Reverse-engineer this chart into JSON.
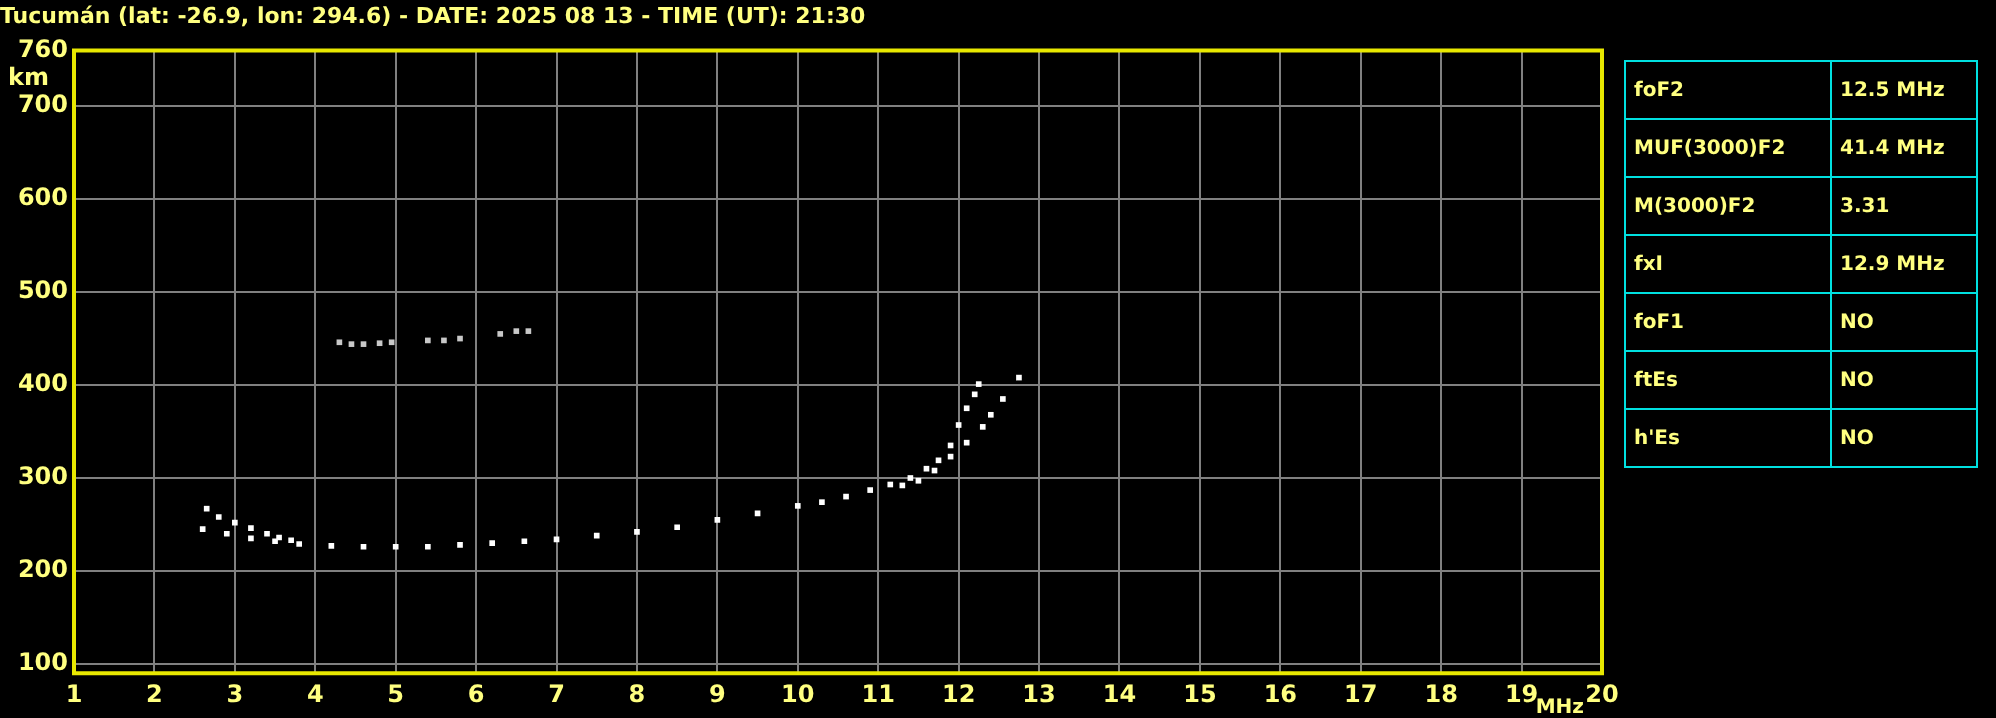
{
  "chart_data": {
    "type": "scatter",
    "title": "Tucumán (lat: -26.9, lon: 294.6) - DATE: 2025 08 13 - TIME (UT): 21:30",
    "xlabel": "MHz",
    "ylabel": "km",
    "xlim": [
      1,
      20
    ],
    "xticks": [
      1,
      2,
      3,
      4,
      5,
      6,
      7,
      8,
      9,
      10,
      11,
      12,
      13,
      14,
      15,
      16,
      17,
      18,
      19,
      20
    ],
    "ylim": [
      90,
      760
    ],
    "yticks": [
      100,
      200,
      300,
      400,
      500,
      600,
      700,
      760
    ],
    "grid": true,
    "marker": "square",
    "legend": false,
    "series": [
      {
        "color": "#ffffff",
        "x": [
          2.6,
          2.9,
          3.2,
          3.5,
          3.8,
          4.2,
          4.6,
          5.0,
          5.4,
          5.8,
          6.2,
          6.6,
          7.0,
          7.5,
          8.0,
          8.5,
          9.0,
          9.5,
          10.0,
          10.3,
          10.6,
          10.9,
          11.15,
          11.4,
          11.6,
          11.75,
          11.9,
          12.0,
          12.1,
          12.2,
          12.25
        ],
        "values": [
          245,
          240,
          235,
          232,
          229,
          227,
          226,
          226,
          226,
          228,
          230,
          232,
          234,
          238,
          242,
          247,
          255,
          262,
          270,
          274,
          280,
          287,
          293,
          300,
          310,
          319,
          335,
          357,
          375,
          390,
          401
        ]
      },
      {
        "color": "#ffffff",
        "x": [
          2.65,
          2.8,
          3.0,
          3.2,
          3.4,
          3.55,
          3.7,
          11.3,
          11.5,
          11.7,
          11.9,
          12.1,
          12.3,
          12.4,
          12.55,
          12.75
        ],
        "values": [
          267,
          258,
          252,
          246,
          240,
          236,
          233,
          292,
          297,
          308,
          323,
          338,
          355,
          368,
          385,
          408
        ]
      },
      {
        "color": "#c8c8c8",
        "x": [
          4.3,
          4.45,
          4.6,
          4.8,
          4.95,
          5.4,
          5.6,
          5.8,
          6.3,
          6.5,
          6.65
        ],
        "values": [
          446,
          444,
          444,
          445,
          446,
          448,
          448,
          450,
          455,
          458,
          458
        ]
      }
    ],
    "annotations": [
      "foF2",
      "12.5 MHz",
      "MUF(3000)F2",
      "41.4 MHz",
      "M(3000)F2",
      "3.31",
      "fxI",
      "12.9 MHz",
      "foF1",
      "NO",
      "ftEs",
      "NO",
      "h'Es",
      "NO"
    ]
  }
}
